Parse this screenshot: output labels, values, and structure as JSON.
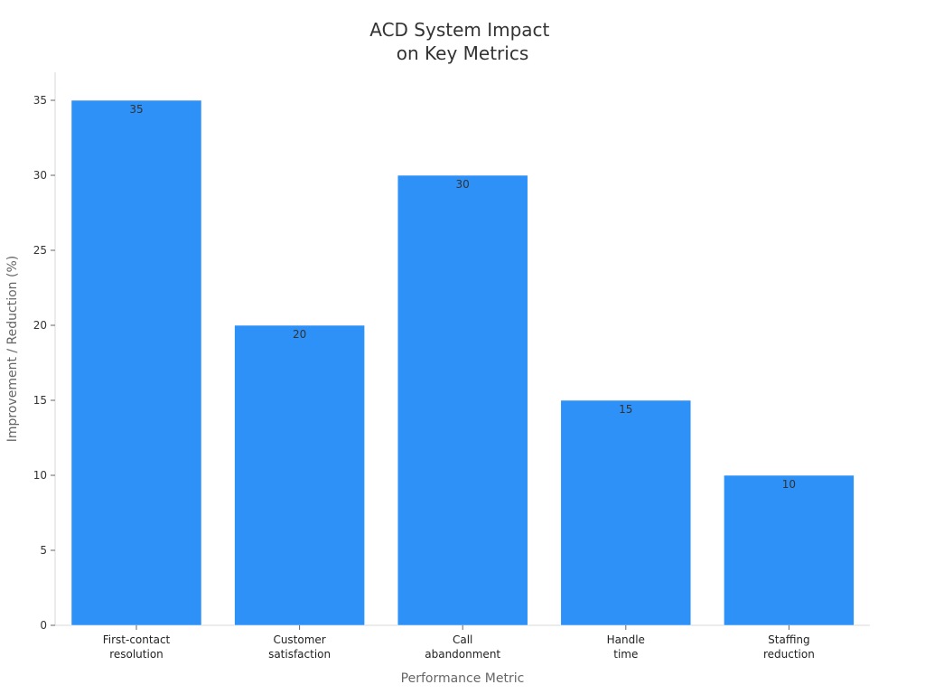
{
  "chart_data": {
    "type": "bar",
    "title": [
      "ACD System Impact",
      "on Key Metrics"
    ],
    "xlabel": "Performance Metric",
    "ylabel": "Improvement / Reduction (%)",
    "categories": [
      [
        "First-contact",
        "resolution"
      ],
      [
        "Customer",
        "satisfaction"
      ],
      [
        "Call",
        "abandonment"
      ],
      [
        "Handle",
        "time"
      ],
      [
        "Staffing",
        "reduction"
      ]
    ],
    "values": [
      35,
      20,
      30,
      15,
      10
    ],
    "data_labels": [
      "35",
      "20",
      "30",
      "15",
      "10"
    ],
    "ylim": [
      0,
      35
    ],
    "yticks": [
      0,
      5,
      10,
      15,
      20,
      25,
      30,
      35
    ],
    "ytick_labels": [
      "0",
      "5",
      "10",
      "15",
      "20",
      "25",
      "30",
      "35"
    ],
    "grid": false,
    "legend": "none",
    "bar_color": "#2e91f8"
  }
}
